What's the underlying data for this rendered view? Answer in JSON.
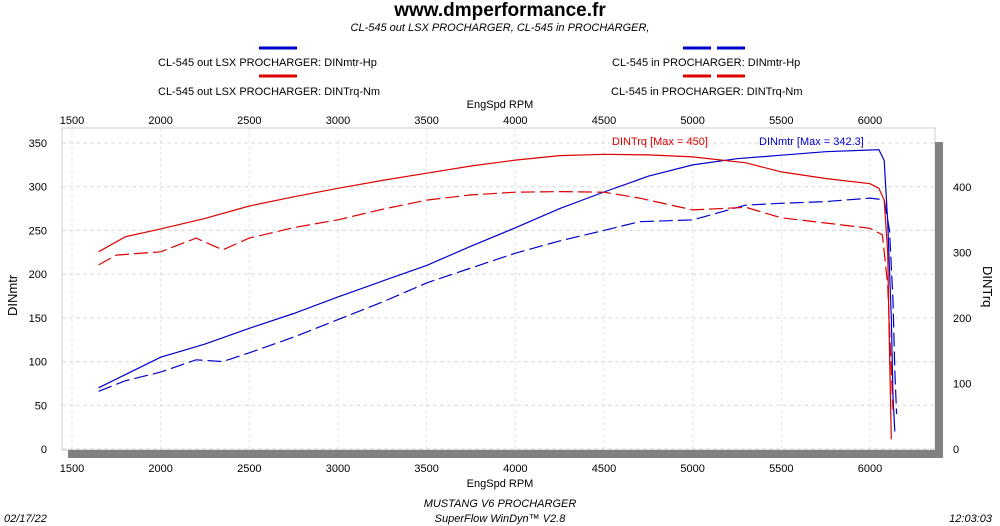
{
  "chart_data": {
    "type": "line",
    "title": "www.dmperformance.fr",
    "subtitle": "CL-545 out LSX PROCHARGER, CL-545 in PROCHARGER,",
    "xlabel": "EngSpd RPM",
    "ylabel_left": "DINmtr",
    "ylabel_right": "DINTrq",
    "xlim": [
      1500,
      6350
    ],
    "ylim_left": [
      0,
      350
    ],
    "ylim_right": [
      0,
      467
    ],
    "x_ticks": [
      "1500",
      "2000",
      "2500",
      "3000",
      "3500",
      "4000",
      "4500",
      "5000",
      "5500",
      "6000"
    ],
    "y_left_ticks": [
      "0",
      "50",
      "100",
      "150",
      "200",
      "250",
      "300",
      "350"
    ],
    "y_right_ticks": [
      "0",
      "100",
      "200",
      "300",
      "400"
    ],
    "grid": true,
    "legend": [
      {
        "label": "CL-545 out LSX PROCHARGER: DINmtr-Hp",
        "color": "#0000cc",
        "style": "solid"
      },
      {
        "label": "CL-545 out LSX PROCHARGER: DINTrq-Nm",
        "color": "#dd0000",
        "style": "solid"
      },
      {
        "label": "CL-545 in PROCHARGER: DINmtr-Hp",
        "color": "#0000cc",
        "style": "dashed"
      },
      {
        "label": "CL-545 in PROCHARGER: DINTrq-Nm",
        "color": "#dd0000",
        "style": "dashed"
      }
    ],
    "annotations": {
      "trq_max": "DINTrq [Max = 450]",
      "hp_max": "DINmtr [Max = 342.3]"
    },
    "series": [
      {
        "name": "CL-545 out LSX PROCHARGER: DINmtr-Hp",
        "axis": "left",
        "color": "#0000cc",
        "dash": false,
        "x": [
          1650,
          1800,
          2000,
          2250,
          2500,
          2750,
          3000,
          3250,
          3500,
          3750,
          4000,
          4250,
          4500,
          4750,
          5000,
          5250,
          5500,
          5750,
          6000,
          6050,
          6080,
          6100,
          6120,
          6130,
          6140
        ],
        "y": [
          70,
          85,
          105,
          120,
          138,
          155,
          174,
          192,
          210,
          232,
          253,
          275,
          294,
          312,
          325,
          332,
          336,
          340,
          342,
          342.3,
          330,
          260,
          150,
          60,
          20
        ]
      },
      {
        "name": "CL-545 in PROCHARGER: DINmtr-Hp",
        "axis": "left",
        "color": "#0000cc",
        "dash": true,
        "x": [
          1650,
          1800,
          2000,
          2200,
          2350,
          2500,
          2750,
          3000,
          3250,
          3500,
          3750,
          4000,
          4250,
          4500,
          4700,
          5000,
          5300,
          5500,
          5750,
          6000,
          6080,
          6110,
          6130,
          6140,
          6150
        ],
        "y": [
          66,
          78,
          88,
          102,
          100,
          110,
          128,
          148,
          168,
          190,
          207,
          224,
          238,
          250,
          260,
          262,
          279,
          281,
          283,
          287,
          285,
          250,
          170,
          90,
          40
        ]
      },
      {
        "name": "CL-545 out LSX PROCHARGER: DINTrq-Nm",
        "axis": "right",
        "color": "#dd0000",
        "dash": false,
        "x": [
          1650,
          1800,
          2000,
          2250,
          2500,
          2750,
          3000,
          3250,
          3500,
          3750,
          4000,
          4250,
          4500,
          4750,
          5000,
          5300,
          5500,
          5750,
          6000,
          6050,
          6080,
          6100,
          6110,
          6120
        ],
        "y": [
          301,
          324,
          336,
          352,
          371,
          385,
          398,
          410,
          421,
          432,
          441,
          448,
          450,
          449,
          446,
          437,
          423,
          413,
          405,
          398,
          380,
          300,
          150,
          15
        ]
      },
      {
        "name": "CL-545 in PROCHARGER: DINTrq-Nm",
        "axis": "right",
        "color": "#dd0000",
        "dash": true,
        "x": [
          1650,
          1750,
          2000,
          2200,
          2350,
          2500,
          2750,
          3000,
          3250,
          3500,
          3750,
          4000,
          4250,
          4500,
          4700,
          5000,
          5300,
          5500,
          5750,
          6000,
          6070,
          6100,
          6120,
          6130
        ],
        "y": [
          281,
          296,
          301,
          322,
          304,
          322,
          338,
          350,
          366,
          380,
          388,
          392,
          393,
          392,
          383,
          365,
          369,
          353,
          345,
          337,
          327,
          250,
          120,
          60
        ]
      }
    ]
  },
  "footer": {
    "date": "02/17/22",
    "time": "12:03:03",
    "vehicle": "MUSTANG V6 PROCHARGER",
    "software": "SuperFlow WinDyn™ V2.8"
  }
}
